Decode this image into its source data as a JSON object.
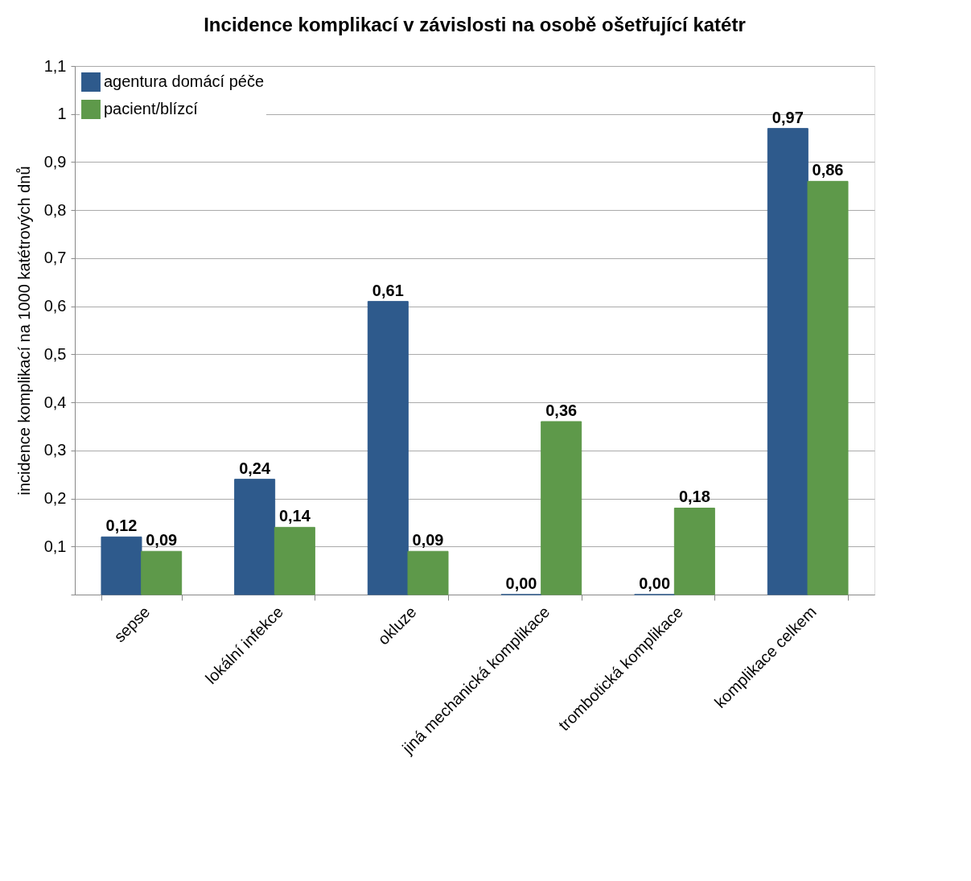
{
  "chart_data": {
    "type": "bar",
    "title": "Incidence komplikací v závislosti na osobě ošetřující katétr",
    "ylabel": "incidence komplikací na 1000 katétrových dnů",
    "categories": [
      "sepse",
      "lokální infekce",
      "okluze",
      "jiná mechanická komplikace",
      "trombotická komplikace",
      "komplikace celkem"
    ],
    "series": [
      {
        "name": "agentura domácí péče",
        "color": "#2e5a8c",
        "values": [
          0.12,
          0.24,
          0.61,
          0.0,
          0.0,
          0.97
        ],
        "value_labels": [
          "0,12",
          "0,24",
          "0,61",
          "0,00",
          "0,00",
          "0,97"
        ]
      },
      {
        "name": "pacient/blízcí",
        "color": "#5e994a",
        "values": [
          0.09,
          0.14,
          0.09,
          0.36,
          0.18,
          0.86
        ],
        "value_labels": [
          "0,09",
          "0,14",
          "0,09",
          "0,36",
          "0,18",
          "0,86"
        ]
      }
    ],
    "ylim": [
      0,
      1.1
    ],
    "yticks": [
      {
        "value": 0,
        "label": null
      },
      {
        "value": 0.1,
        "label": "0,1"
      },
      {
        "value": 0.2,
        "label": "0,2"
      },
      {
        "value": 0.3,
        "label": "0,3"
      },
      {
        "value": 0.4,
        "label": "0,4"
      },
      {
        "value": 0.5,
        "label": "0,5"
      },
      {
        "value": 0.6,
        "label": "0,6"
      },
      {
        "value": 0.7,
        "label": "0,7"
      },
      {
        "value": 0.8,
        "label": "0,8"
      },
      {
        "value": 0.9,
        "label": "0,9"
      },
      {
        "value": 1,
        "label": "1"
      },
      {
        "value": 1.1,
        "label": "1,1"
      }
    ],
    "grid": "y",
    "legend": "top left"
  }
}
